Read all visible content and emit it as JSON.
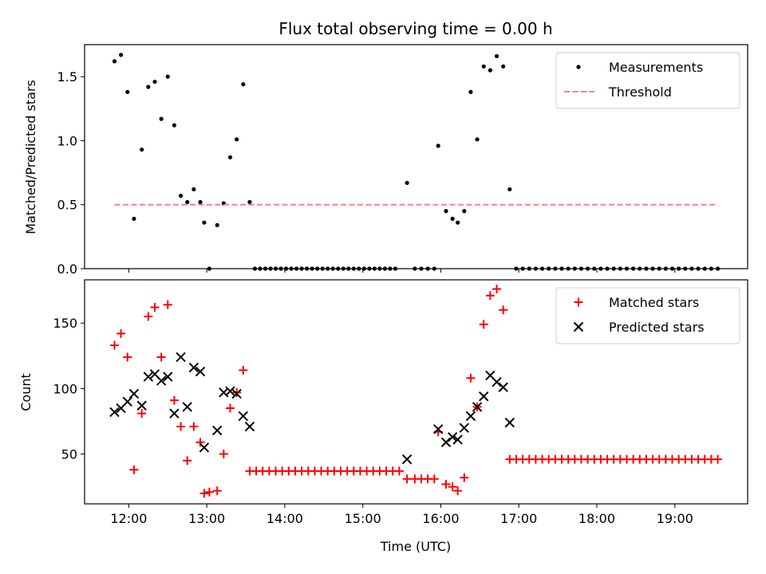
{
  "chart_data": [
    {
      "type": "scatter",
      "title": "Flux total observing time = 0.00 h",
      "xlabel": "",
      "ylabel": "Matched/Predicted stars",
      "xlim": [
        "11:26",
        "19:56"
      ],
      "ylim": [
        0,
        1.75
      ],
      "x_ticks": [
        "12:00",
        "13:00",
        "14:00",
        "15:00",
        "16:00",
        "17:00",
        "18:00",
        "19:00"
      ],
      "y_ticks": [
        "0.0",
        "0.5",
        "1.0",
        "1.5"
      ],
      "legend_position": "top-right",
      "series": [
        {
          "name": "Measurements",
          "marker": "dot",
          "color": "#000000",
          "points": [
            [
              "11:49",
              1.62
            ],
            [
              "11:54",
              1.67
            ],
            [
              "11:59",
              1.38
            ],
            [
              "12:04",
              0.39
            ],
            [
              "12:10",
              0.93
            ],
            [
              "12:15",
              1.42
            ],
            [
              "12:20",
              1.46
            ],
            [
              "12:25",
              1.17
            ],
            [
              "12:30",
              1.5
            ],
            [
              "12:35",
              1.12
            ],
            [
              "12:40",
              0.57
            ],
            [
              "12:45",
              0.52
            ],
            [
              "12:50",
              0.62
            ],
            [
              "12:55",
              0.52
            ],
            [
              "12:58",
              0.36
            ],
            [
              "13:02",
              0.0
            ],
            [
              "13:08",
              0.34
            ],
            [
              "13:13",
              0.51
            ],
            [
              "13:18",
              0.87
            ],
            [
              "13:23",
              1.01
            ],
            [
              "13:28",
              1.44
            ],
            [
              "13:33",
              0.52
            ],
            [
              "13:37",
              0.0
            ],
            [
              "13:41",
              0.0
            ],
            [
              "13:45",
              0.0
            ],
            [
              "13:49",
              0.0
            ],
            [
              "13:53",
              0.0
            ],
            [
              "13:57",
              0.0
            ],
            [
              "14:01",
              0.0
            ],
            [
              "14:05",
              0.0
            ],
            [
              "14:09",
              0.0
            ],
            [
              "14:13",
              0.0
            ],
            [
              "14:17",
              0.0
            ],
            [
              "14:21",
              0.0
            ],
            [
              "14:25",
              0.0
            ],
            [
              "14:29",
              0.0
            ],
            [
              "14:33",
              0.0
            ],
            [
              "14:37",
              0.0
            ],
            [
              "14:41",
              0.0
            ],
            [
              "14:45",
              0.0
            ],
            [
              "14:49",
              0.0
            ],
            [
              "14:53",
              0.0
            ],
            [
              "14:57",
              0.0
            ],
            [
              "15:01",
              0.0
            ],
            [
              "15:05",
              0.0
            ],
            [
              "15:09",
              0.0
            ],
            [
              "15:13",
              0.0
            ],
            [
              "15:17",
              0.0
            ],
            [
              "15:21",
              0.0
            ],
            [
              "15:25",
              0.0
            ],
            [
              "15:34",
              0.67
            ],
            [
              "15:40",
              0.0
            ],
            [
              "15:45",
              0.0
            ],
            [
              "15:50",
              0.0
            ],
            [
              "15:55",
              0.0
            ],
            [
              "15:58",
              0.96
            ],
            [
              "16:04",
              0.45
            ],
            [
              "16:09",
              0.39
            ],
            [
              "16:13",
              0.36
            ],
            [
              "16:18",
              0.45
            ],
            [
              "16:23",
              1.38
            ],
            [
              "16:28",
              1.01
            ],
            [
              "16:33",
              1.58
            ],
            [
              "16:38",
              1.55
            ],
            [
              "16:43",
              1.66
            ],
            [
              "16:48",
              1.58
            ],
            [
              "16:53",
              0.62
            ],
            [
              "16:58",
              0.0
            ],
            [
              "17:03",
              0.0
            ],
            [
              "17:08",
              0.0
            ],
            [
              "17:13",
              0.0
            ],
            [
              "17:18",
              0.0
            ],
            [
              "17:23",
              0.0
            ],
            [
              "17:28",
              0.0
            ],
            [
              "17:33",
              0.0
            ],
            [
              "17:38",
              0.0
            ],
            [
              "17:43",
              0.0
            ],
            [
              "17:48",
              0.0
            ],
            [
              "17:53",
              0.0
            ],
            [
              "17:58",
              0.0
            ],
            [
              "18:03",
              0.0
            ],
            [
              "18:08",
              0.0
            ],
            [
              "18:13",
              0.0
            ],
            [
              "18:18",
              0.0
            ],
            [
              "18:23",
              0.0
            ],
            [
              "18:28",
              0.0
            ],
            [
              "18:33",
              0.0
            ],
            [
              "18:38",
              0.0
            ],
            [
              "18:43",
              0.0
            ],
            [
              "18:48",
              0.0
            ],
            [
              "18:53",
              0.0
            ],
            [
              "18:58",
              0.0
            ],
            [
              "19:03",
              0.0
            ],
            [
              "19:08",
              0.0
            ],
            [
              "19:13",
              0.0
            ],
            [
              "19:18",
              0.0
            ],
            [
              "19:23",
              0.0
            ],
            [
              "19:28",
              0.0
            ],
            [
              "19:33",
              0.0
            ]
          ]
        },
        {
          "name": "Threshold",
          "type": "line",
          "style": "dashed",
          "color": "#ff7f7f",
          "points": [
            [
              "11:49",
              0.5
            ],
            [
              "19:33",
              0.5
            ]
          ]
        }
      ]
    },
    {
      "type": "scatter",
      "title": "",
      "xlabel": "Time (UTC)",
      "ylabel": "Count",
      "xlim": [
        "11:26",
        "19:56"
      ],
      "ylim": [
        12,
        183
      ],
      "x_ticks": [
        "12:00",
        "13:00",
        "14:00",
        "15:00",
        "16:00",
        "17:00",
        "18:00",
        "19:00"
      ],
      "y_ticks": [
        "50",
        "100",
        "150"
      ],
      "legend_position": "top-right",
      "series": [
        {
          "name": "Matched stars",
          "marker": "plus",
          "color": "#ff0000",
          "points": [
            [
              "11:49",
              133
            ],
            [
              "11:54",
              142
            ],
            [
              "11:59",
              124
            ],
            [
              "12:04",
              38
            ],
            [
              "12:10",
              81
            ],
            [
              "12:15",
              155
            ],
            [
              "12:20",
              162
            ],
            [
              "12:25",
              124
            ],
            [
              "12:30",
              164
            ],
            [
              "12:35",
              91
            ],
            [
              "12:40",
              71
            ],
            [
              "12:45",
              45
            ],
            [
              "12:50",
              71
            ],
            [
              "12:55",
              59
            ],
            [
              "12:58",
              20
            ],
            [
              "13:02",
              21
            ],
            [
              "13:08",
              22
            ],
            [
              "13:13",
              50
            ],
            [
              "13:18",
              85
            ],
            [
              "13:23",
              97
            ],
            [
              "13:28",
              114
            ],
            [
              "13:33",
              37
            ],
            [
              "13:38",
              37
            ],
            [
              "13:43",
              37
            ],
            [
              "13:48",
              37
            ],
            [
              "13:53",
              37
            ],
            [
              "13:58",
              37
            ],
            [
              "14:03",
              37
            ],
            [
              "14:08",
              37
            ],
            [
              "14:13",
              37
            ],
            [
              "14:18",
              37
            ],
            [
              "14:23",
              37
            ],
            [
              "14:28",
              37
            ],
            [
              "14:33",
              37
            ],
            [
              "14:38",
              37
            ],
            [
              "14:43",
              37
            ],
            [
              "14:48",
              37
            ],
            [
              "14:53",
              37
            ],
            [
              "14:58",
              37
            ],
            [
              "15:03",
              37
            ],
            [
              "15:08",
              37
            ],
            [
              "15:13",
              37
            ],
            [
              "15:18",
              37
            ],
            [
              "15:23",
              37
            ],
            [
              "15:28",
              37
            ],
            [
              "15:34",
              31
            ],
            [
              "15:40",
              31
            ],
            [
              "15:45",
              31
            ],
            [
              "15:50",
              31
            ],
            [
              "15:55",
              31
            ],
            [
              "15:58",
              67
            ],
            [
              "16:04",
              27
            ],
            [
              "16:09",
              25
            ],
            [
              "16:13",
              22
            ],
            [
              "16:18",
              32
            ],
            [
              "16:23",
              108
            ],
            [
              "16:28",
              86
            ],
            [
              "16:33",
              149
            ],
            [
              "16:38",
              171
            ],
            [
              "16:43",
              176
            ],
            [
              "16:48",
              160
            ],
            [
              "16:53",
              46
            ],
            [
              "16:58",
              46
            ],
            [
              "17:03",
              46
            ],
            [
              "17:08",
              46
            ],
            [
              "17:13",
              46
            ],
            [
              "17:18",
              46
            ],
            [
              "17:23",
              46
            ],
            [
              "17:28",
              46
            ],
            [
              "17:33",
              46
            ],
            [
              "17:38",
              46
            ],
            [
              "17:43",
              46
            ],
            [
              "17:48",
              46
            ],
            [
              "17:53",
              46
            ],
            [
              "17:58",
              46
            ],
            [
              "18:03",
              46
            ],
            [
              "18:08",
              46
            ],
            [
              "18:13",
              46
            ],
            [
              "18:18",
              46
            ],
            [
              "18:23",
              46
            ],
            [
              "18:28",
              46
            ],
            [
              "18:33",
              46
            ],
            [
              "18:38",
              46
            ],
            [
              "18:43",
              46
            ],
            [
              "18:48",
              46
            ],
            [
              "18:53",
              46
            ],
            [
              "18:58",
              46
            ],
            [
              "19:03",
              46
            ],
            [
              "19:08",
              46
            ],
            [
              "19:13",
              46
            ],
            [
              "19:18",
              46
            ],
            [
              "19:23",
              46
            ],
            [
              "19:28",
              46
            ],
            [
              "19:33",
              46
            ]
          ]
        },
        {
          "name": "Predicted stars",
          "marker": "x",
          "color": "#000000",
          "points": [
            [
              "11:49",
              82
            ],
            [
              "11:54",
              85
            ],
            [
              "11:59",
              90
            ],
            [
              "12:04",
              96
            ],
            [
              "12:10",
              87
            ],
            [
              "12:15",
              109
            ],
            [
              "12:20",
              111
            ],
            [
              "12:25",
              106
            ],
            [
              "12:30",
              109
            ],
            [
              "12:35",
              81
            ],
            [
              "12:40",
              124
            ],
            [
              "12:45",
              86
            ],
            [
              "12:50",
              116
            ],
            [
              "12:55",
              113
            ],
            [
              "12:58",
              55
            ],
            [
              "13:08",
              68
            ],
            [
              "13:13",
              97
            ],
            [
              "13:18",
              98
            ],
            [
              "13:23",
              96
            ],
            [
              "13:28",
              79
            ],
            [
              "13:33",
              71
            ],
            [
              "15:34",
              46
            ],
            [
              "15:58",
              69
            ],
            [
              "16:04",
              59
            ],
            [
              "16:09",
              63
            ],
            [
              "16:13",
              61
            ],
            [
              "16:18",
              70
            ],
            [
              "16:23",
              79
            ],
            [
              "16:28",
              86
            ],
            [
              "16:33",
              94
            ],
            [
              "16:38",
              110
            ],
            [
              "16:43",
              105
            ],
            [
              "16:48",
              101
            ],
            [
              "16:53",
              74
            ]
          ]
        }
      ]
    }
  ]
}
